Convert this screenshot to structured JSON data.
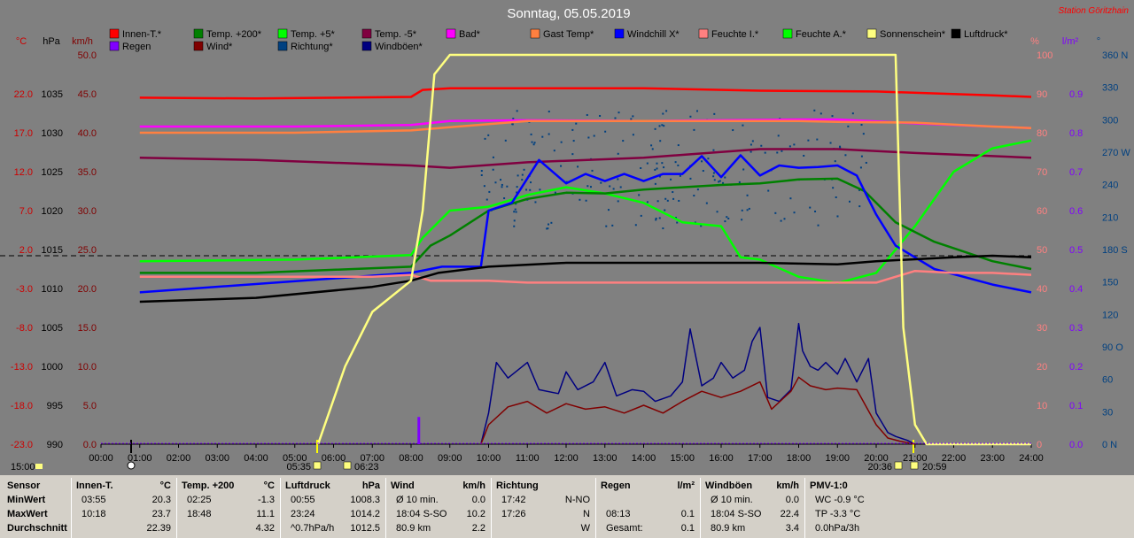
{
  "title": "Sonntag, 05.05.2019",
  "station": "Station Göritzhain",
  "legend": [
    {
      "label": "Innen-T.*",
      "color": "#ff0000"
    },
    {
      "label": "Temp. +200*",
      "color": "#008000"
    },
    {
      "label": "Temp. +5*",
      "color": "#00ff00"
    },
    {
      "label": "Temp. -5*",
      "color": "#800040"
    },
    {
      "label": "Bad*",
      "color": "#ff00ff"
    },
    {
      "label": "Gast Temp*",
      "color": "#ff8040"
    },
    {
      "label": "Windchill X*",
      "color": "#0000ff"
    },
    {
      "label": "Feuchte I.*",
      "color": "#ff8080"
    },
    {
      "label": "Feuchte A.*",
      "color": "#00ff00"
    },
    {
      "label": "Sonnenschein*",
      "color": "#ffff80"
    },
    {
      "label": "Luftdruck*",
      "color": "#000000"
    },
    {
      "label": "Regen",
      "color": "#8000ff"
    },
    {
      "label": "Wind*",
      "color": "#800000"
    },
    {
      "label": "Richtung*",
      "color": "#004080"
    },
    {
      "label": "Windböen*",
      "color": "#000080"
    }
  ],
  "axis_units": {
    "temp": "°C",
    "press": "hPa",
    "wind": "km/h",
    "hum": "%",
    "rain": "l/m²",
    "dir": "°"
  },
  "colors": {
    "temp_axis": "#cc0000",
    "press_axis": "#000000",
    "wind_axis": "#800000",
    "hum_axis": "#ff8080",
    "rain_axis": "#8000ff",
    "dir_axis": "#004080"
  },
  "chart_data": {
    "type": "line",
    "x_ticks": [
      "00:00",
      "01:00",
      "02:00",
      "03:00",
      "04:00",
      "05:00",
      "06:00",
      "07:00",
      "08:00",
      "09:00",
      "10:00",
      "11:00",
      "12:00",
      "13:00",
      "14:00",
      "15:00",
      "16:00",
      "17:00",
      "18:00",
      "19:00",
      "20:00",
      "21:00",
      "22:00",
      "23:00",
      "24:00"
    ],
    "temp_ticks": [
      "22.0",
      "17.0",
      "12.0",
      "7.0",
      "2.0",
      "-3.0",
      "-8.0",
      "-13.0",
      "-18.0",
      "-23.0"
    ],
    "press_ticks": [
      "1035",
      "1030",
      "1025",
      "1020",
      "1015",
      "1010",
      "1005",
      "1000",
      "995",
      "990"
    ],
    "wind_ticks": [
      "50.0",
      "45.0",
      "40.0",
      "35.0",
      "30.0",
      "25.0",
      "20.0",
      "15.0",
      "10.0",
      "5.0",
      "0.0"
    ],
    "hum_ticks": [
      "100",
      "90",
      "80",
      "70",
      "60",
      "50",
      "40",
      "30",
      "20",
      "10",
      "0"
    ],
    "rain_ticks": [
      "0.9",
      "0.8",
      "0.7",
      "0.6",
      "0.5",
      "0.4",
      "0.3",
      "0.2",
      "0.1",
      "0.0"
    ],
    "dir_ticks": [
      "360 N",
      "330",
      "300",
      "270 W",
      "240",
      "210",
      "180 S",
      "150",
      "120",
      "90 O",
      "60",
      "30",
      "0 N"
    ],
    "sun_events": {
      "sunrise": "05:35",
      "civil_rise": "06:23",
      "sunset": "20:36",
      "civil_set": "20:59"
    },
    "series": [
      {
        "name": "Innen-T.*",
        "axis": "temp",
        "color": "#ff0000",
        "x": [
          1,
          4,
          8,
          8.3,
          9,
          11,
          14,
          17,
          20,
          23,
          24
        ],
        "y": [
          21.5,
          21.4,
          21.6,
          22.5,
          22.7,
          22.7,
          22.7,
          22.4,
          22.3,
          21.8,
          21.6
        ]
      },
      {
        "name": "Bad*",
        "axis": "temp",
        "color": "#ff00ff",
        "x": [
          1,
          5,
          8,
          9,
          11,
          14,
          18,
          19,
          21,
          23,
          24
        ],
        "y": [
          17.8,
          17.8,
          18,
          18.5,
          18.6,
          18.5,
          18.7,
          18.7,
          18.2,
          17.8,
          17.6
        ]
      },
      {
        "name": "Gast Temp*",
        "axis": "temp",
        "color": "#ff8040",
        "x": [
          1,
          5,
          8,
          9,
          11,
          14,
          18,
          19,
          21,
          23,
          24
        ],
        "y": [
          17,
          17,
          17.3,
          17.7,
          18.5,
          18.5,
          18.5,
          18.4,
          18.3,
          17.8,
          17.6
        ]
      },
      {
        "name": "Temp. -5*",
        "axis": "temp",
        "color": "#800040",
        "x": [
          1,
          4,
          8,
          9,
          11,
          14,
          17,
          19,
          21,
          23,
          24
        ],
        "y": [
          13.8,
          13.5,
          12.8,
          12.5,
          13.2,
          13.8,
          14.9,
          14.9,
          14.4,
          14,
          13.8
        ]
      },
      {
        "name": "Temp. +5*",
        "axis": "temp",
        "color": "#00ff00",
        "x": [
          1,
          5,
          8,
          8.3,
          9,
          10,
          11,
          12,
          13,
          14,
          15,
          16,
          16.5,
          17,
          18,
          19,
          20,
          21,
          22,
          23,
          24
        ],
        "y": [
          0.5,
          0.7,
          1.3,
          3.5,
          7,
          7.5,
          9,
          10,
          9.2,
          8,
          5.5,
          5,
          1,
          0.7,
          -1.5,
          -2.3,
          -1,
          5,
          12,
          15,
          16
        ]
      },
      {
        "name": "Temp. +200*",
        "axis": "temp",
        "color": "#008000",
        "x": [
          1,
          4,
          8,
          8.5,
          9,
          10,
          11,
          12,
          13,
          14,
          15,
          16,
          17,
          18,
          19,
          19.7,
          20.5,
          21.5,
          23,
          24
        ],
        "y": [
          -1,
          -1,
          -0.2,
          2.5,
          3.8,
          7,
          8.5,
          9.3,
          9.2,
          9.7,
          10,
          10.3,
          10.5,
          11,
          11.1,
          9.5,
          5.5,
          3,
          0.5,
          -0.5
        ]
      },
      {
        "name": "Windchill X*",
        "axis": "temp",
        "color": "#0000ff",
        "x": [
          1,
          8,
          8.8,
          9.8,
          10,
          10.6,
          11.3,
          12,
          12.5,
          13,
          13.5,
          14,
          14.5,
          15,
          15.5,
          16,
          16.5,
          17,
          17.5,
          18,
          18.5,
          19,
          19.5,
          20,
          20.5,
          21.5,
          23,
          24
        ],
        "y": [
          -3.5,
          -1,
          -0.2,
          -0.2,
          7,
          8,
          13.5,
          10.5,
          11.7,
          10.8,
          11.7,
          10.8,
          11.7,
          11.7,
          14,
          11.3,
          14.1,
          11.5,
          12.8,
          12.5,
          12.6,
          12.8,
          11.5,
          6.5,
          2.5,
          -0.5,
          -2.5,
          -3.5
        ]
      },
      {
        "name": "Feuchte I.*",
        "axis": "hum",
        "color": "#ff8080",
        "x": [
          1,
          7,
          8,
          8.5,
          10,
          11,
          14,
          18,
          19,
          20,
          21,
          22,
          23,
          24
        ],
        "y": [
          43,
          43,
          43.5,
          42,
          42,
          41.5,
          41.5,
          41.5,
          41.5,
          41.5,
          44.5,
          44,
          44,
          43.5
        ]
      },
      {
        "name": "Luftdruck*",
        "axis": "press",
        "color": "#000000",
        "x": [
          1,
          4,
          7,
          8,
          8.7,
          10,
          12,
          15,
          17,
          19,
          20,
          22,
          23,
          24
        ],
        "y": [
          1008.3,
          1008.8,
          1010.2,
          1011,
          1012,
          1012.8,
          1013.3,
          1013.3,
          1013.3,
          1013.1,
          1013.5,
          1014,
          1014.2,
          1014
        ]
      },
      {
        "name": "Sonnenschein*",
        "axis": "hum",
        "color": "#ffff80",
        "x": [
          5.6,
          6.3,
          7,
          8,
          8.3,
          8.6,
          9,
          11,
          13,
          15,
          17,
          19,
          20.5,
          20.7,
          21,
          21.3,
          22,
          24
        ],
        "y": [
          0,
          20,
          34,
          42,
          60,
          95,
          100,
          100,
          100,
          100,
          100,
          100,
          100,
          30,
          5,
          0,
          0,
          0
        ]
      },
      {
        "name": "Windböen*",
        "axis": "wind",
        "color": "#000080",
        "x": [
          9.8,
          10,
          10.2,
          10.5,
          11,
          11.3,
          11.8,
          12,
          12.3,
          12.7,
          13,
          13.3,
          13.7,
          14,
          14.3,
          14.7,
          15,
          15.2,
          15.5,
          15.8,
          16,
          16.3,
          16.6,
          16.8,
          17,
          17.2,
          17.5,
          17.8,
          18,
          18.1,
          18.3,
          18.5,
          18.7,
          19,
          19.2,
          19.5,
          19.8,
          20,
          20.3,
          20.5,
          20.8,
          21
        ],
        "y": [
          0,
          4,
          10.5,
          8.5,
          10.5,
          7,
          6.5,
          9.3,
          7,
          8,
          10.5,
          6.2,
          7,
          6.8,
          5.5,
          6.2,
          8,
          14.8,
          7.5,
          8.5,
          10.5,
          8.5,
          9.5,
          13.2,
          15,
          6,
          5.5,
          7,
          15.5,
          12,
          10,
          9.5,
          10.5,
          9,
          11,
          8,
          11,
          4,
          1.5,
          1,
          0.5,
          0
        ]
      },
      {
        "name": "Wind*",
        "axis": "wind",
        "color": "#800000",
        "x": [
          9.8,
          10,
          10.5,
          11,
          11.5,
          12,
          12.5,
          13,
          13.5,
          14,
          14.5,
          15,
          15.5,
          16,
          16.5,
          17,
          17.3,
          17.8,
          18,
          18.3,
          18.7,
          19,
          19.5,
          20,
          20.3,
          20.6,
          21
        ],
        "y": [
          0,
          2.5,
          4.8,
          5.5,
          4,
          5.2,
          4.5,
          4.8,
          4,
          5,
          4,
          5.5,
          6.8,
          6,
          6.8,
          8,
          4.5,
          6.8,
          8.6,
          7.5,
          7,
          7.2,
          7,
          2.5,
          0.8,
          0.4,
          0
        ]
      },
      {
        "name": "Regen",
        "axis": "rain",
        "color": "#8000ff",
        "x": [
          8.2
        ],
        "y": [
          0.07
        ]
      }
    ]
  },
  "stats": {
    "rows": [
      "Sensor",
      "MinWert",
      "MaxWert",
      "Durchschnitt"
    ],
    "groups": [
      {
        "name": "Innen-T.",
        "unit": "°C",
        "min_time": "03:55",
        "min": "20.3",
        "max_time": "10:18",
        "max": "23.7",
        "avg_label": "",
        "avg": "22.39"
      },
      {
        "name": "Temp. +200",
        "unit": "°C",
        "min_time": "02:25",
        "min": "-1.3",
        "max_time": "18:48",
        "max": "11.1",
        "avg_label": "",
        "avg": "4.32"
      },
      {
        "name": "Luftdruck",
        "unit": "hPa",
        "min_time": "00:55",
        "min": "1008.3",
        "max_time": "23:24",
        "max": "1014.2",
        "avg_label": "^0.7hPa/h",
        "avg": "1012.5"
      },
      {
        "name": "Wind",
        "unit": "km/h",
        "min_time": "Ø 10 min.",
        "min": "0.0",
        "max_time": "18:04   S-SO",
        "max": "10.2",
        "avg_label": "80.9 km",
        "avg": "2.2"
      },
      {
        "name": "Richtung",
        "unit": "",
        "min_time": "17:42",
        "min": "N-NO",
        "max_time": "17:26",
        "max": "N",
        "avg_label": "",
        "avg": "W"
      },
      {
        "name": "Regen",
        "unit": "l/m²",
        "min_time": "",
        "min": "",
        "max_time": "08:13",
        "max": "0.1",
        "avg_label": "Gesamt:",
        "avg": "0.1"
      },
      {
        "name": "Windböen",
        "unit": "km/h",
        "min_time": "Ø 10 min.",
        "min": "0.0",
        "max_time": "18:04   S-SO",
        "max": "22.4",
        "avg_label": "80.9 km",
        "avg": "3.4"
      },
      {
        "name": "PMV-1:0",
        "unit": "",
        "min_time": "WC -0.9 °C",
        "min": "",
        "max_time": "TP -3.3 °C",
        "max": "",
        "avg_label": "0.0hPa/3h",
        "avg": ""
      }
    ]
  }
}
